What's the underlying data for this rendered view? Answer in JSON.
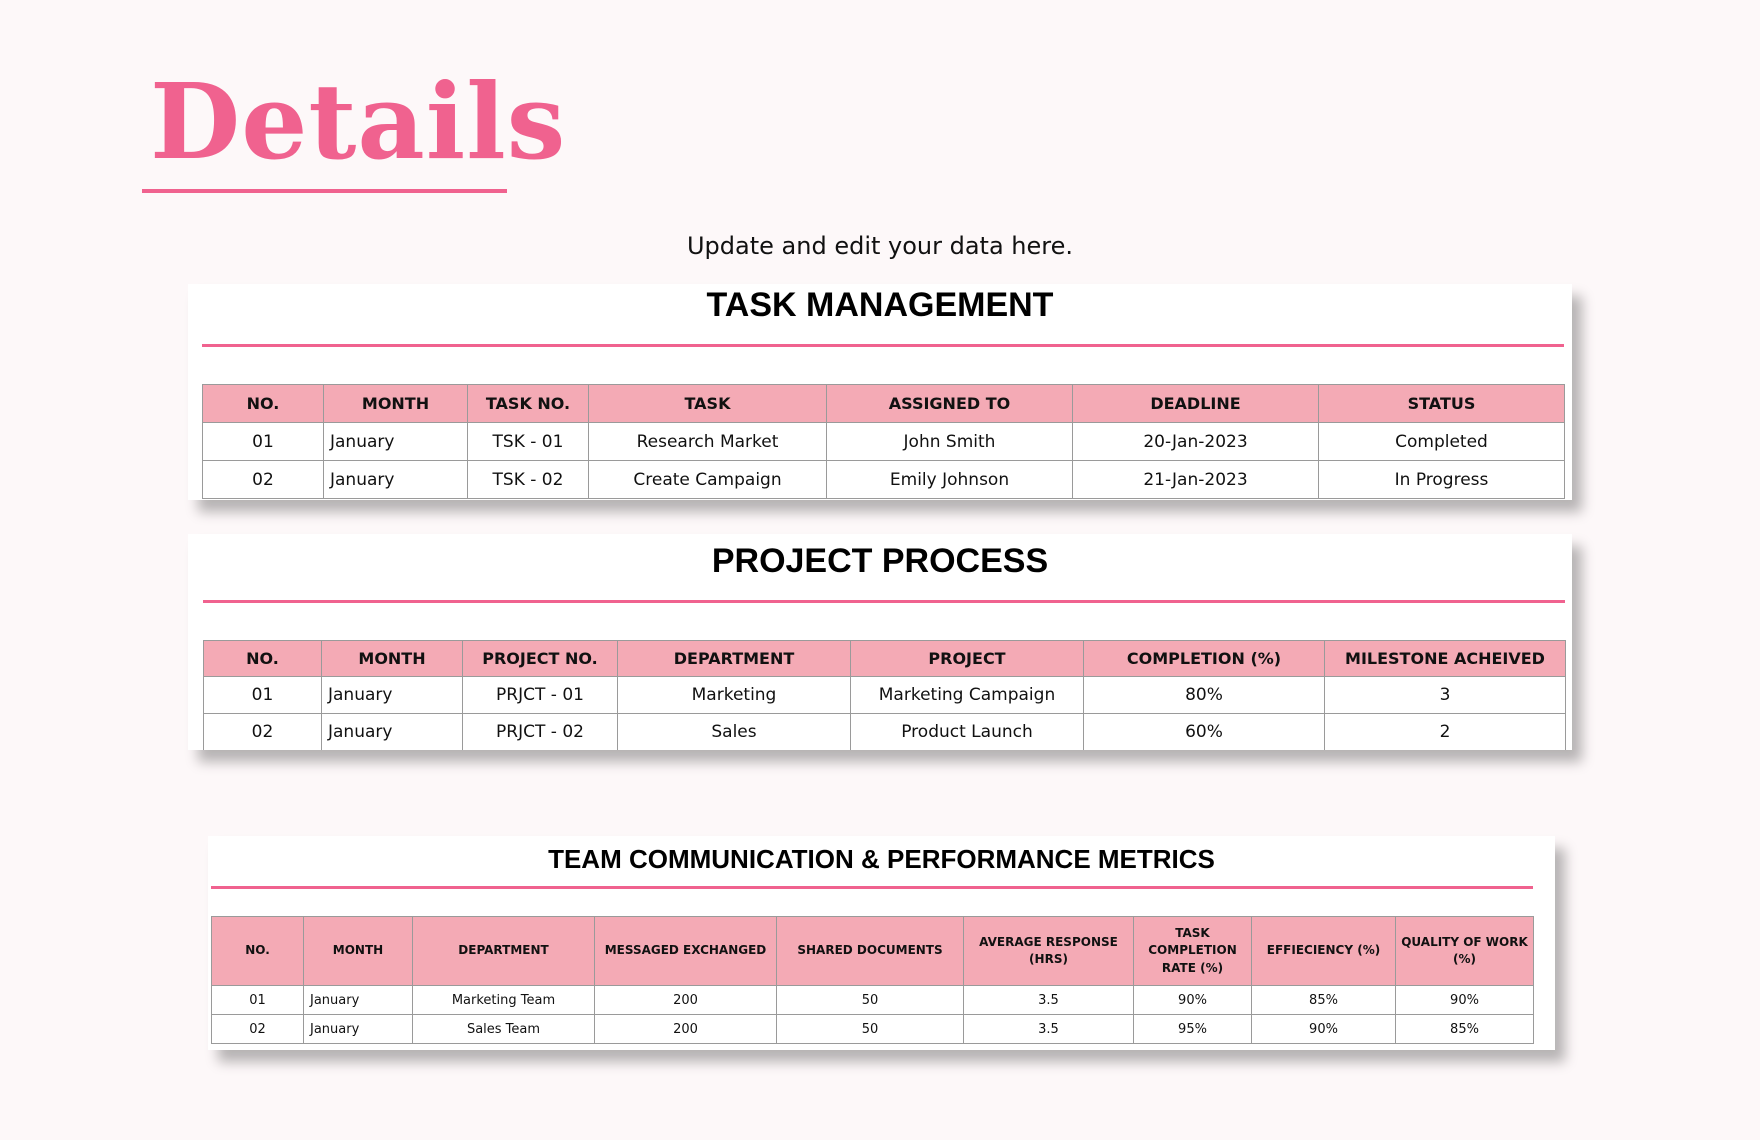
{
  "page": {
    "title": "Details",
    "subtitle": "Update and edit your data here."
  },
  "colors": {
    "accent": "#f0628f",
    "header_fill": "#f4aab5",
    "background": "#fdf8f9"
  },
  "task_management": {
    "title": "TASK MANAGEMENT",
    "headers": [
      "NO.",
      "MONTH",
      "TASK NO.",
      "TASK",
      "ASSIGNED TO",
      "DEADLINE",
      "STATUS"
    ],
    "rows": [
      [
        "01",
        "January",
        "TSK - 01",
        "Research Market",
        "John Smith",
        "20-Jan-2023",
        "Completed"
      ],
      [
        "02",
        "January",
        "TSK - 02",
        "Create Campaign",
        "Emily Johnson",
        "21-Jan-2023",
        "In Progress"
      ]
    ]
  },
  "project_process": {
    "title": "PROJECT PROCESS",
    "headers": [
      "NO.",
      "MONTH",
      "PROJECT NO.",
      "DEPARTMENT",
      "PROJECT",
      "COMPLETION (%)",
      "MILESTONE ACHEIVED"
    ],
    "rows": [
      [
        "01",
        "January",
        "PRJCT - 01",
        "Marketing",
        "Marketing Campaign",
        "80%",
        "3"
      ],
      [
        "02",
        "January",
        "PRJCT - 02",
        "Sales",
        "Product Launch",
        "60%",
        "2"
      ]
    ]
  },
  "team_metrics": {
    "title": "TEAM COMMUNICATION & PERFORMANCE METRICS",
    "headers": [
      "NO.",
      "MONTH",
      "DEPARTMENT",
      "MESSAGED EXCHANGED",
      "SHARED DOCUMENTS",
      "AVERAGE RESPONSE (HRS)",
      "TASK COMPLETION RATE (%)",
      "EFFIECIENCY (%)",
      "QUALITY OF WORK (%)"
    ],
    "rows": [
      [
        "01",
        "January",
        "Marketing Team",
        "200",
        "50",
        "3.5",
        "90%",
        "85%",
        "90%"
      ],
      [
        "02",
        "January",
        "Sales Team",
        "200",
        "50",
        "3.5",
        "95%",
        "90%",
        "85%"
      ]
    ]
  }
}
